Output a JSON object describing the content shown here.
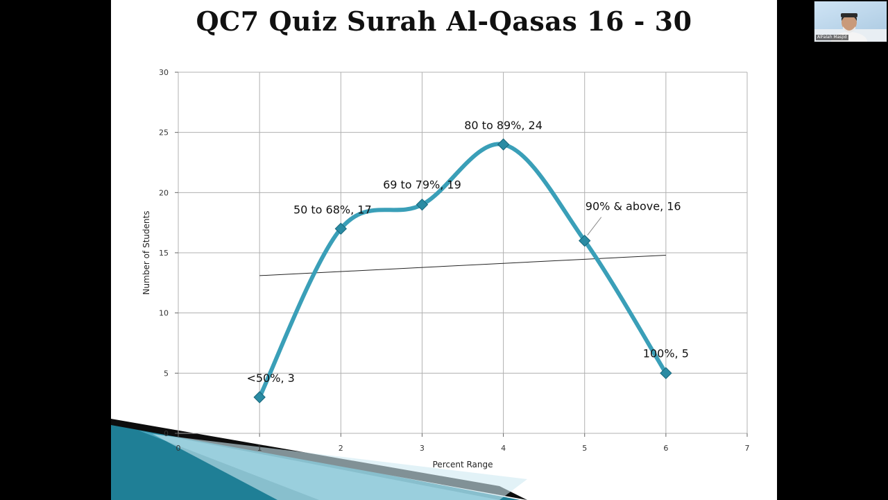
{
  "slide": {
    "title": "QC7 Quiz Surah Al-Qasas 16 - 30"
  },
  "video": {
    "participant_name": "AlFalah Masjid"
  },
  "colors": {
    "series": "#3a9fb8",
    "marker": "#2a8ba3",
    "trendline": "#222222",
    "grid": "#b0b0b0",
    "decor_dark": "#1f7f96",
    "decor_light": "#7fcde0"
  },
  "chart_data": {
    "type": "line",
    "smooth": true,
    "title": "",
    "xlabel": "Percent Range",
    "ylabel": "Number of Students",
    "xlim": [
      0,
      7
    ],
    "ylim": [
      0,
      30
    ],
    "xticks": [
      "0",
      "1",
      "2",
      "3",
      "4",
      "5",
      "6",
      "7"
    ],
    "yticks": [
      "0",
      "5",
      "10",
      "15",
      "20",
      "25",
      "30"
    ],
    "grid": true,
    "legend": "none",
    "series": [
      {
        "x": [
          1,
          2,
          3,
          4,
          5,
          6
        ],
        "y": [
          3,
          17,
          19,
          24,
          16,
          5
        ],
        "labels": [
          "<50%, 3",
          "50 to 68%, 17",
          "69 to 79%, 19",
          "80 to 89%, 24",
          "90% & above, 16",
          "100%, 5"
        ]
      }
    ],
    "trendline": {
      "type": "linear",
      "x": [
        1,
        6
      ],
      "y": [
        13.1,
        14.8
      ]
    }
  }
}
